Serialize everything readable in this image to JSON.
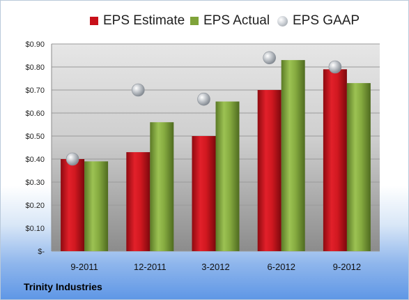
{
  "chart_data": {
    "type": "bar",
    "categories": [
      "9-2011",
      "12-2011",
      "3-2012",
      "6-2012",
      "9-2012"
    ],
    "series": [
      {
        "name": "EPS Estimate",
        "values": [
          0.4,
          0.43,
          0.5,
          0.7,
          0.79
        ],
        "color": "#c8101a"
      },
      {
        "name": "EPS Actual",
        "values": [
          0.39,
          0.56,
          0.65,
          0.83,
          0.73
        ],
        "color": "#7fa33a"
      },
      {
        "name": "EPS GAAP",
        "values": [
          0.4,
          0.7,
          0.66,
          0.84,
          0.8
        ],
        "color": "#aeb3b9",
        "marker": "bubble"
      }
    ],
    "y_tick_labels": [
      "$-",
      "$0.10",
      "$0.20",
      "$0.30",
      "$0.40",
      "$0.50",
      "$0.60",
      "$0.70",
      "$0.80",
      "$0.90"
    ],
    "ylim": [
      0,
      0.9
    ],
    "grid": true,
    "legend_position": "top"
  },
  "company": "Trinity Industries"
}
